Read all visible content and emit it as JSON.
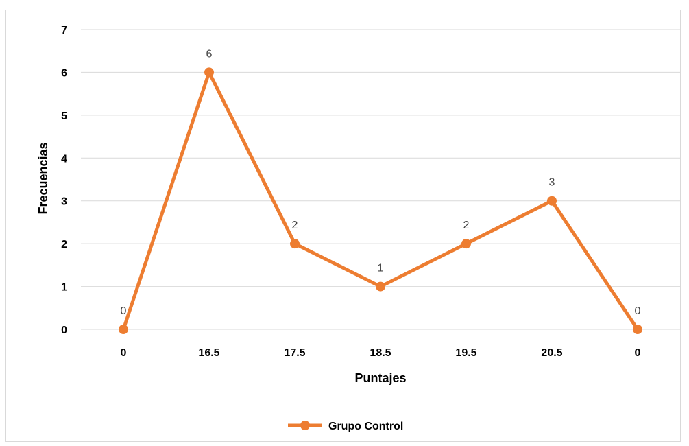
{
  "chart_data": {
    "type": "line",
    "categories": [
      "0",
      "16.5",
      "17.5",
      "18.5",
      "19.5",
      "20.5",
      "0"
    ],
    "series": [
      {
        "name": "Grupo Control",
        "values": [
          0,
          6,
          2,
          1,
          2,
          3,
          0
        ],
        "color": "#ED7D31"
      }
    ],
    "data_labels": [
      "0",
      "6",
      "2",
      "1",
      "2",
      "3",
      "0"
    ],
    "xlabel": "Puntajes",
    "ylabel": "Frecuencias",
    "ylim": [
      0,
      7
    ],
    "yticks": [
      "0",
      "1",
      "2",
      "3",
      "4",
      "5",
      "6",
      "7"
    ],
    "grid": true,
    "legend_position": "bottom",
    "colors": {
      "gridline": "#D9D9D9",
      "series": "#ED7D31"
    }
  }
}
